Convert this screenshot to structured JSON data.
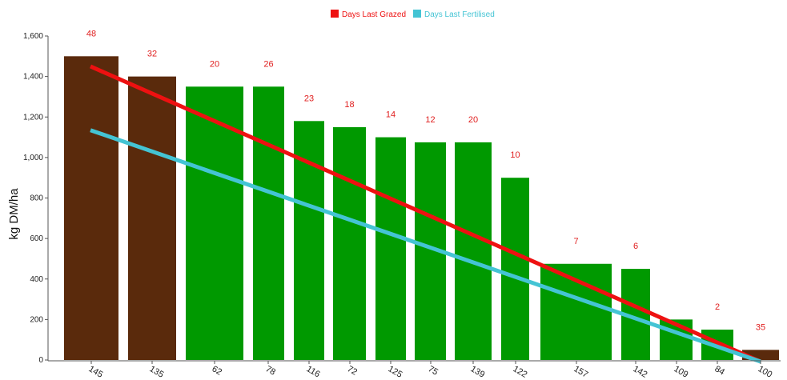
{
  "chart_data": {
    "type": "bar",
    "ylabel": "kg DM/ha",
    "ylim": [
      0,
      1600
    ],
    "yticks": [
      "0",
      "200",
      "400",
      "600",
      "800",
      "1,000",
      "1,200",
      "1,400",
      "1,600"
    ],
    "categories": [
      "145",
      "135",
      "62",
      "78",
      "116",
      "72",
      "125",
      "75",
      "139",
      "122",
      "157",
      "142",
      "109",
      "84",
      "100"
    ],
    "values": [
      1500,
      1400,
      1350,
      1350,
      1180,
      1150,
      1100,
      1075,
      1075,
      900,
      475,
      450,
      200,
      150,
      50
    ],
    "bar_labels": [
      "48",
      "32",
      "20",
      "26",
      "23",
      "18",
      "14",
      "12",
      "20",
      "10",
      "7",
      "6",
      "",
      "2",
      "35"
    ],
    "bar_colors": [
      "#5a2a0c",
      "#5a2a0c",
      "#009900",
      "#009900",
      "#009900",
      "#009900",
      "#009900",
      "#009900",
      "#009900",
      "#009900",
      "#009900",
      "#009900",
      "#009900",
      "#009900",
      "#5a2a0c"
    ],
    "lines": [
      {
        "name": "Days Last Grazed",
        "color": "#ee1111",
        "values": [
          1450,
          0
        ]
      },
      {
        "name": "Days Last Fertilised",
        "color": "#44c4d4",
        "values": [
          1135,
          0
        ]
      }
    ],
    "legend": {
      "position": "top-center"
    }
  }
}
